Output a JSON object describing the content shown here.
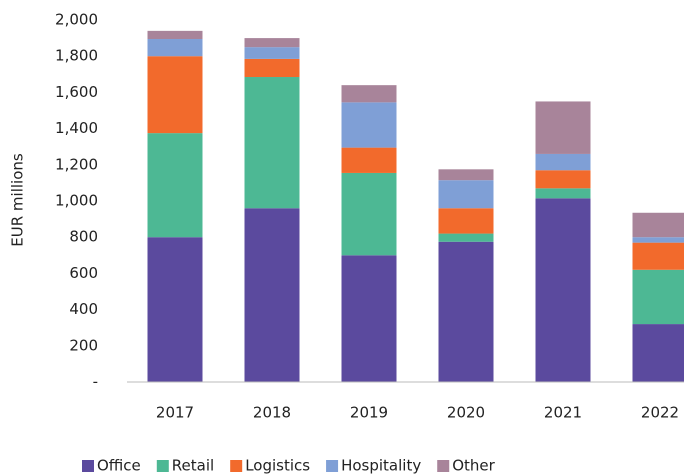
{
  "chart_data": {
    "type": "stacked_bar",
    "y_label": "EUR millions",
    "categories": [
      "2017",
      "2018",
      "2019",
      "2020",
      "2021",
      "2022"
    ],
    "series": [
      {
        "name": "Office",
        "color": "#5b4a9e",
        "values": [
          800,
          960,
          700,
          775,
          1015,
          320
        ]
      },
      {
        "name": "Retail",
        "color": "#4db894",
        "values": [
          575,
          725,
          455,
          45,
          55,
          300
        ]
      },
      {
        "name": "Logistics",
        "color": "#f26a2c",
        "values": [
          425,
          100,
          140,
          140,
          100,
          150
        ]
      },
      {
        "name": "Hospitality",
        "color": "#7f9fd6",
        "values": [
          95,
          65,
          250,
          155,
          90,
          30
        ]
      },
      {
        "name": "Other",
        "color": "#a8849a",
        "values": [
          45,
          50,
          95,
          60,
          290,
          135
        ]
      }
    ],
    "ylim": [
      0,
      2000
    ],
    "yticks": [
      {
        "value": 0,
        "label": "-"
      },
      200,
      400,
      600,
      800,
      {
        "value": 1000,
        "label": "1,000"
      },
      {
        "value": 1200,
        "label": "1,200"
      },
      {
        "value": 1400,
        "label": "1,400"
      },
      {
        "value": 1600,
        "label": "1,600"
      },
      {
        "value": 1800,
        "label": "1,800"
      },
      {
        "value": 2000,
        "label": "2,000"
      }
    ],
    "legend": "bottom"
  }
}
